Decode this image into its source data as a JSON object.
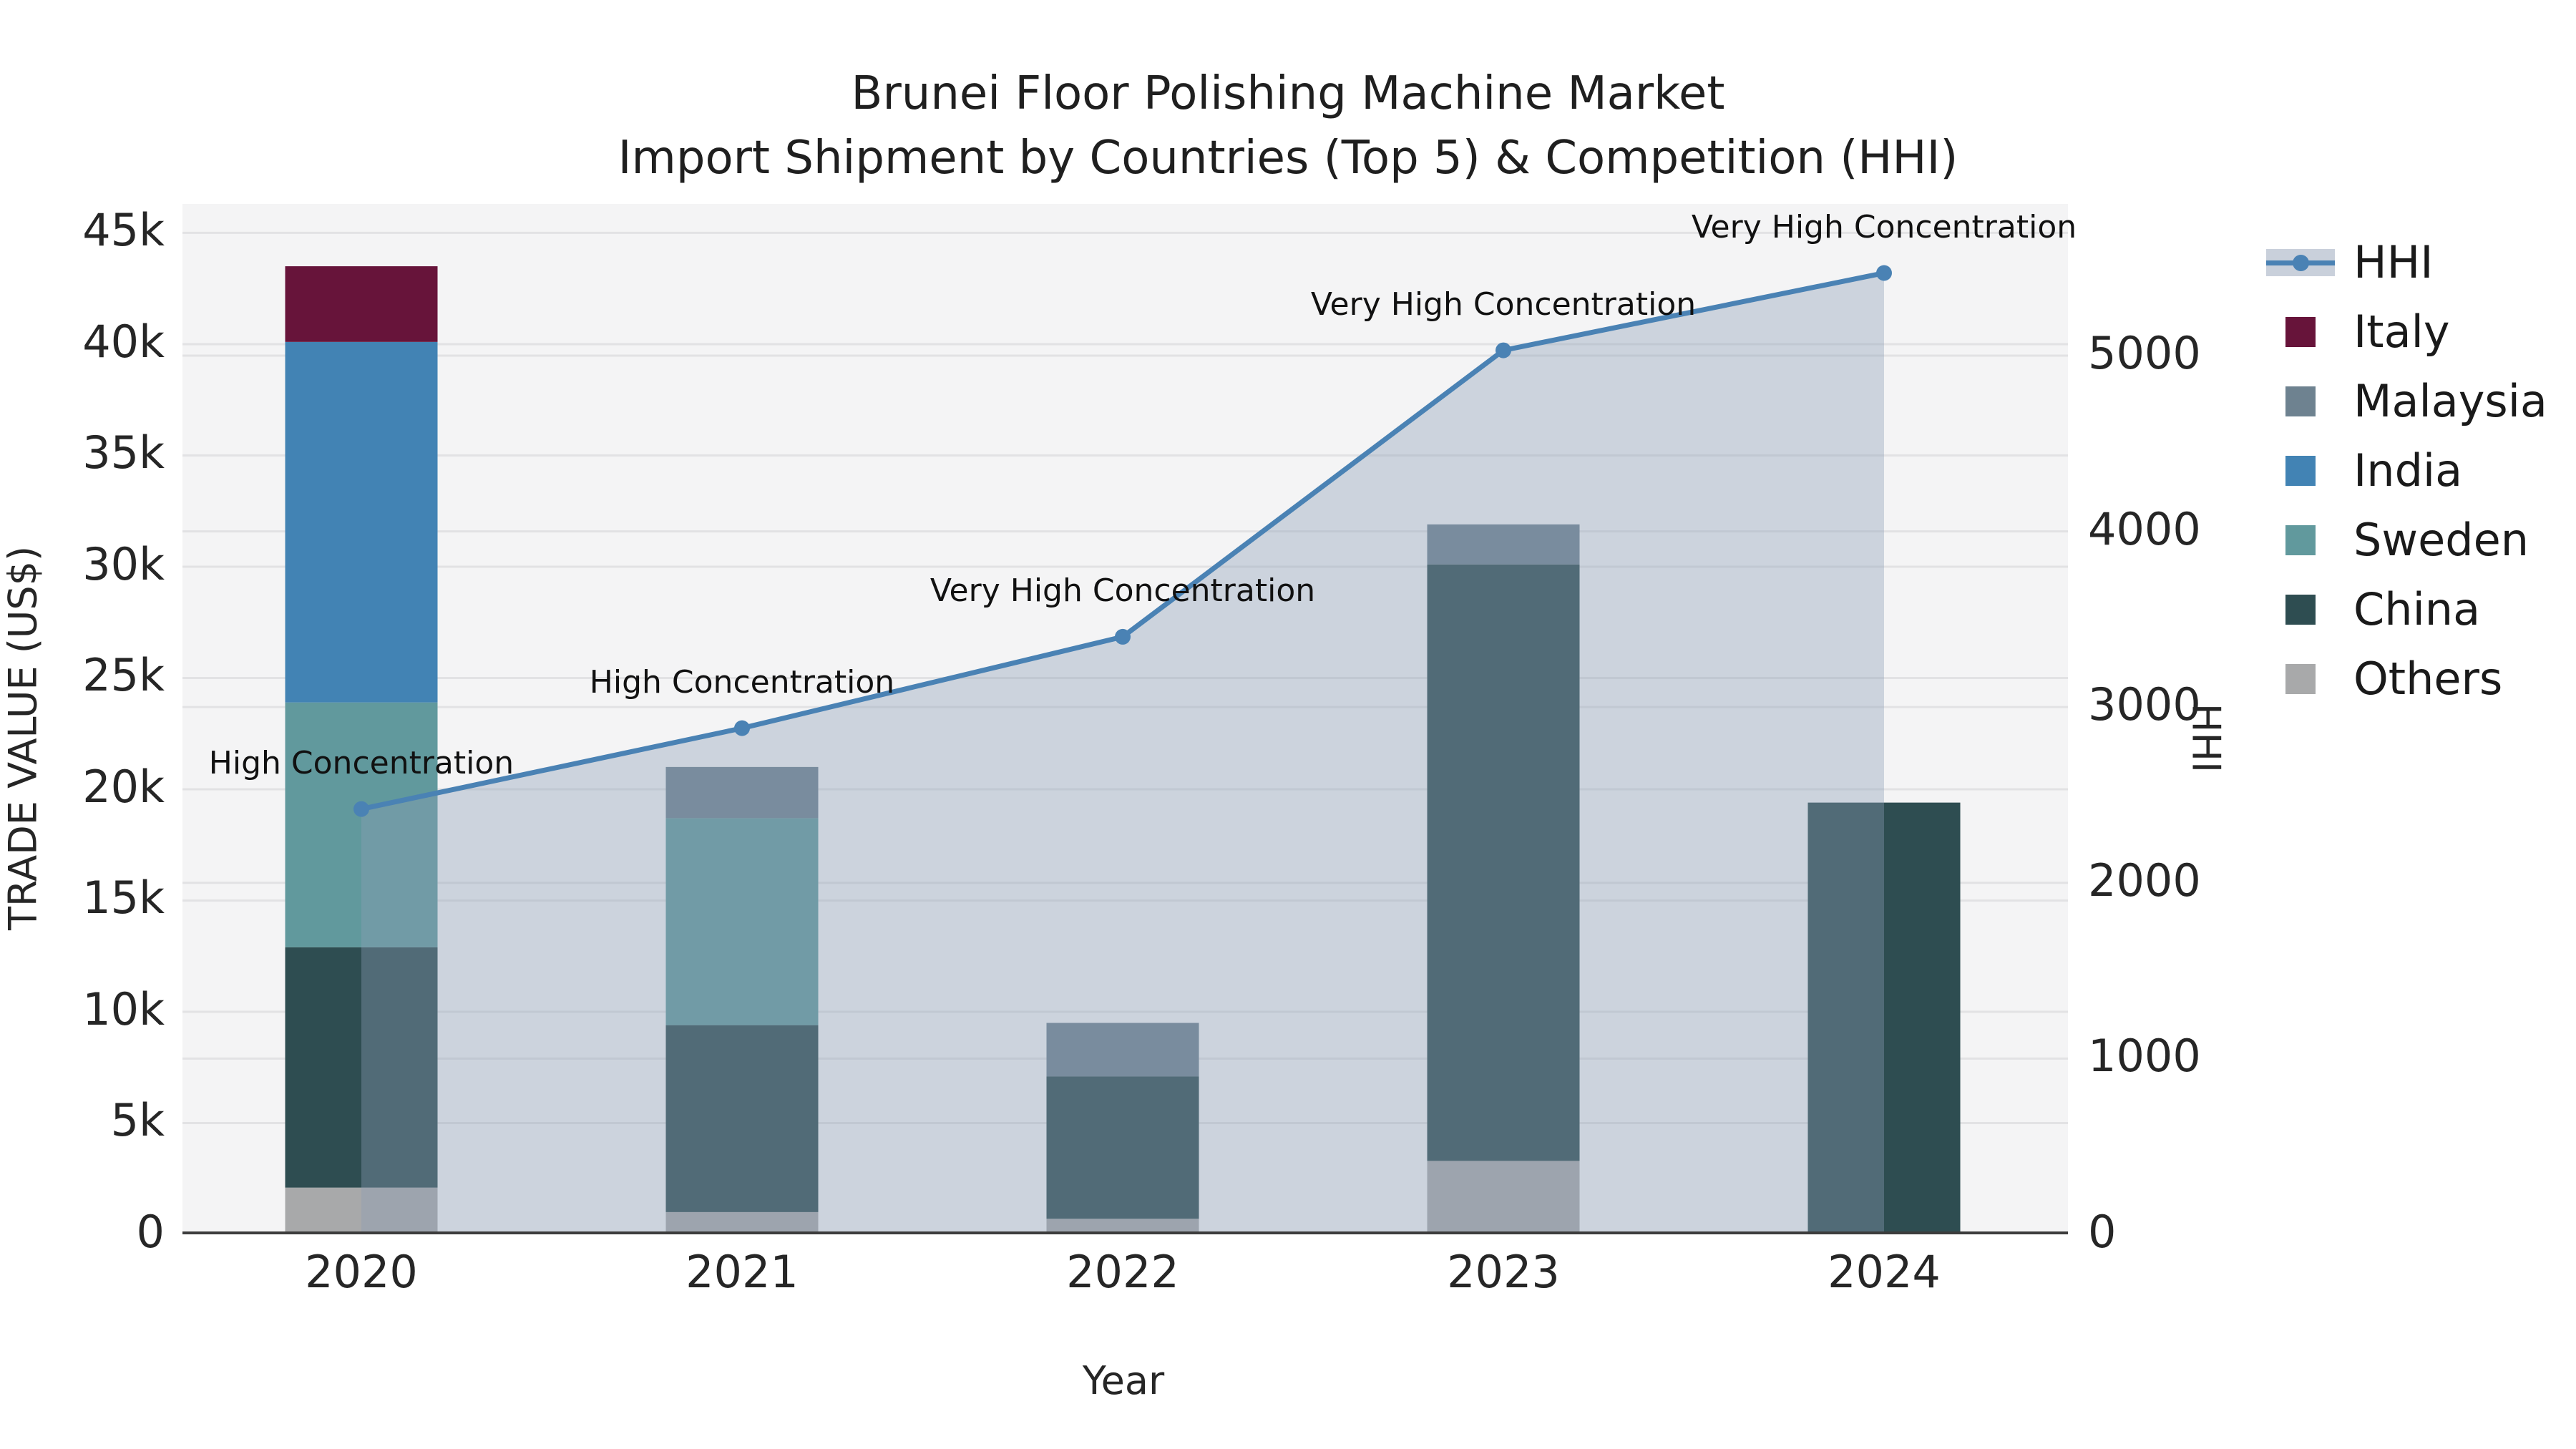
{
  "title": {
    "line1": "Brunei Floor Polishing Machine Market",
    "line2": "Import Shipment by Countries (Top 5) & Competition (HHI)"
  },
  "axes": {
    "left_title": "TRADE VALUE (US$)",
    "right_title": "HHI",
    "x_title": "Year"
  },
  "legend": {
    "items": [
      {
        "label": "HHI",
        "type": "line",
        "color": "#4a82b4"
      },
      {
        "label": "Italy",
        "type": "swatch",
        "color": "#67143a"
      },
      {
        "label": "Malaysia",
        "type": "swatch",
        "color": "#6e8290"
      },
      {
        "label": "India",
        "type": "swatch",
        "color": "#4283b4"
      },
      {
        "label": "Sweden",
        "type": "swatch",
        "color": "#61999d"
      },
      {
        "label": "China",
        "type": "swatch",
        "color": "#2e4d51"
      },
      {
        "label": "Others",
        "type": "swatch",
        "color": "#a8a9aa"
      }
    ]
  },
  "chart_data": {
    "type": "bar+line",
    "title": "Brunei Floor Polishing Machine Market — Import Shipment by Countries (Top 5) & Competition (HHI)",
    "categories": [
      "2020",
      "2021",
      "2022",
      "2023",
      "2024"
    ],
    "bar_series": [
      {
        "name": "Others",
        "color": "#a8a9aa",
        "values": [
          2100,
          1000,
          700,
          3300,
          0
        ]
      },
      {
        "name": "China",
        "color": "#2e4d51",
        "values": [
          10800,
          8400,
          6400,
          26800,
          19400
        ]
      },
      {
        "name": "Sweden",
        "color": "#61999d",
        "values": [
          11000,
          9300,
          0,
          0,
          0
        ]
      },
      {
        "name": "India",
        "color": "#4283b4",
        "values": [
          16200,
          0,
          0,
          0,
          0
        ]
      },
      {
        "name": "Malaysia",
        "color": "#6e8290",
        "values": [
          0,
          2300,
          2400,
          1800,
          0
        ]
      },
      {
        "name": "Italy",
        "color": "#67143a",
        "values": [
          3400,
          0,
          0,
          0,
          0
        ]
      }
    ],
    "line_series": {
      "name": "HHI",
      "color": "#4a82b4",
      "area_color": "rgba(140,157,182,0.38)",
      "values": [
        2420,
        2880,
        3400,
        5030,
        5470
      ]
    },
    "annotations": [
      "High Concentration",
      "High Concentration",
      "Very High Concentration",
      "Very High Concentration",
      "Very High Concentration"
    ],
    "left_axis": {
      "label": "TRADE VALUE (US$)",
      "max": 46300,
      "ticks": [
        "0",
        "5k",
        "10k",
        "15k",
        "20k",
        "25k",
        "30k",
        "35k",
        "40k",
        "45k"
      ],
      "tick_values": [
        0,
        5000,
        10000,
        15000,
        20000,
        25000,
        30000,
        35000,
        40000,
        45000
      ]
    },
    "right_axis": {
      "label": "HHI",
      "max": 5863,
      "ticks": [
        "0",
        "1000",
        "2000",
        "3000",
        "4000",
        "5000"
      ],
      "tick_values": [
        0,
        1000,
        2000,
        3000,
        4000,
        5000
      ]
    },
    "xlabel": "Year",
    "grid": true,
    "legend_position": "right"
  }
}
